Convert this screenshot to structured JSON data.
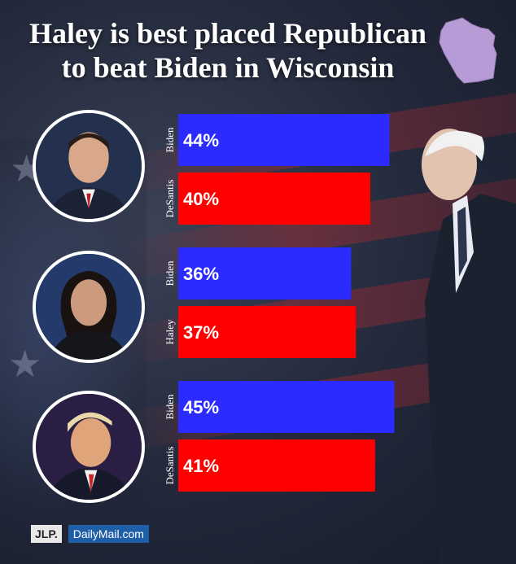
{
  "title_line1": "Haley is best placed Republican",
  "title_line2": "to beat Biden in Wisconsin",
  "logos": {
    "jlp": "JLP.",
    "dailymail": "DailyMail.com"
  },
  "colors": {
    "biden": "#2b2bff",
    "republican": "#ff0000",
    "map": "#b79bd6"
  },
  "chart_data": {
    "type": "bar",
    "orientation": "horizontal",
    "groups": [
      {
        "bars": [
          {
            "category": "Biden",
            "value": 44,
            "label": "44%"
          },
          {
            "category": "DeSantis",
            "value": 40,
            "label": "40%"
          }
        ]
      },
      {
        "bars": [
          {
            "category": "Biden",
            "value": 36,
            "label": "36%"
          },
          {
            "category": "Haley",
            "value": 37,
            "label": "37%"
          }
        ]
      },
      {
        "bars": [
          {
            "category": "Biden",
            "value": 45,
            "label": "45%"
          },
          {
            "category": "DeSantis",
            "value": 41,
            "label": "41%"
          }
        ]
      }
    ],
    "grid": false
  }
}
